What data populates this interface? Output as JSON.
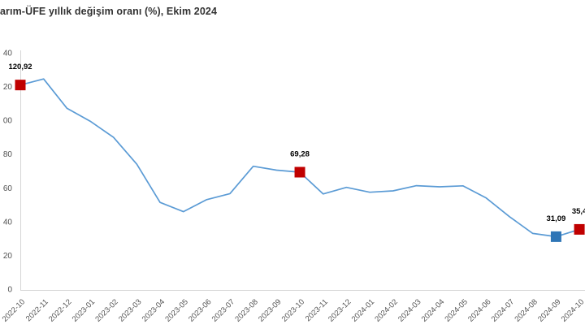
{
  "header": {
    "title": "arım-ÜFE yıllık değişim oranı (%), Ekim 2024"
  },
  "chart_data": {
    "type": "line",
    "title": "arım-ÜFE yıllık değişim oranı (%), Ekim 2024",
    "xlabel": "",
    "ylabel": "",
    "grid": false,
    "legend": false,
    "ylim": [
      0,
      140
    ],
    "x": [
      "2022-10",
      "2022-11",
      "2022-12",
      "2023-01",
      "2023-02",
      "2023-03",
      "2023-04",
      "2023-05",
      "2023-06",
      "2023-07",
      "2023-08",
      "2023-09",
      "2023-10",
      "2023-11",
      "2023-12",
      "2024-01",
      "2024-02",
      "2024-03",
      "2024-04",
      "2024-05",
      "2024-06",
      "2024-07",
      "2024-08",
      "2024-09",
      "2024-10"
    ],
    "values": [
      120.92,
      124.5,
      107.2,
      99.5,
      89.9,
      74.0,
      51.4,
      45.9,
      53.0,
      56.6,
      72.8,
      70.5,
      69.28,
      56.4,
      60.3,
      57.4,
      58.2,
      61.3,
      60.6,
      61.2,
      54.0,
      42.9,
      33.0,
      31.09,
      35.4
    ],
    "yticks": {
      "values": [
        0,
        20,
        40,
        60,
        80,
        100,
        120,
        140
      ],
      "labels_as_rendered": [
        "0",
        "20",
        "40",
        "60",
        "80",
        "00",
        "20",
        "40"
      ]
    },
    "annotations": [
      {
        "month": "2022-10",
        "label": "120,92",
        "marker": "red"
      },
      {
        "month": "2023-10",
        "label": "69,28",
        "marker": "red"
      },
      {
        "month": "2024-09",
        "label": "31,09",
        "marker": "blue"
      },
      {
        "month": "2024-10",
        "label": "35,4",
        "marker": "red"
      }
    ],
    "colors": {
      "line": "#5B9BD5",
      "marker_red": "#C00000",
      "marker_blue": "#2E75B6",
      "axis": "#D6D6D6",
      "tick_text": "#525252",
      "data_label_text": "#000000",
      "title_text": "#333333"
    }
  }
}
